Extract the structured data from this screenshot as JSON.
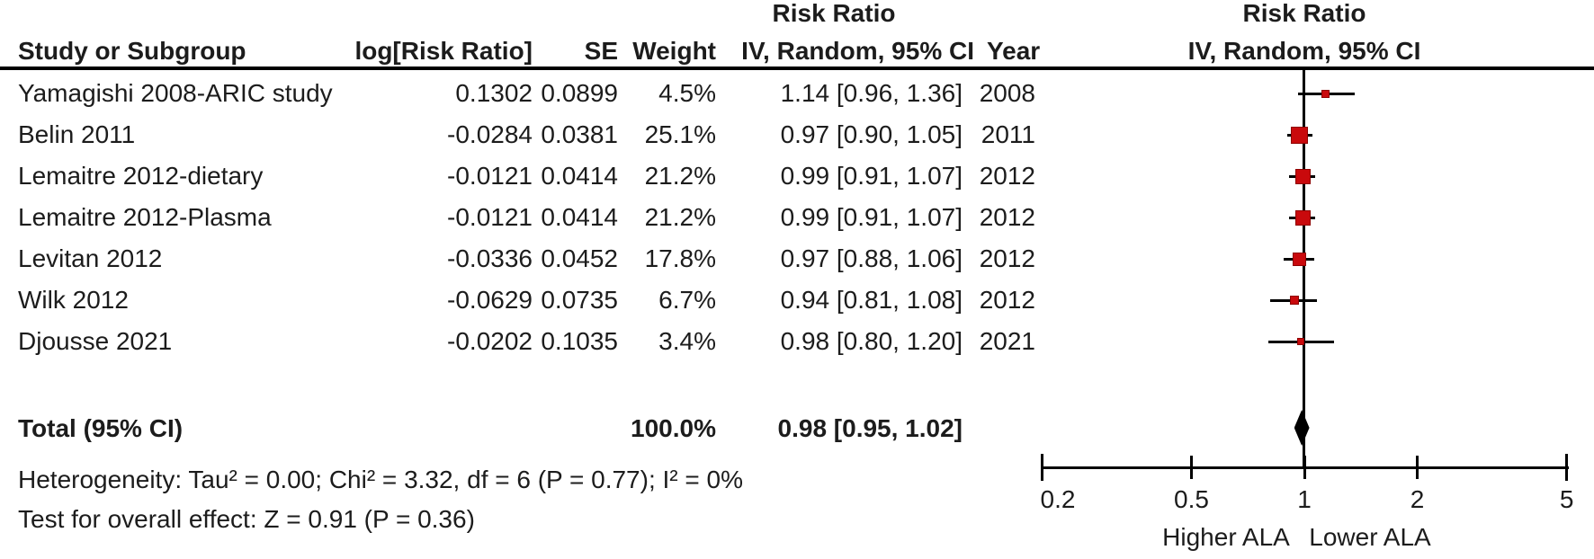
{
  "headers": {
    "left_group": "Risk Ratio",
    "right_group": "Risk Ratio",
    "right_subheader": "IV, Random, 95% CI",
    "columns": {
      "study": "Study or Subgroup",
      "log_rr": "log[Risk Ratio]",
      "se": "SE",
      "weight": "Weight",
      "ci": "IV, Random, 95% CI",
      "year": "Year"
    }
  },
  "colors": {
    "marker_fill": "#c9090c",
    "marker_border": "#8f0000",
    "diamond": "#000000",
    "line": "#000000"
  },
  "chart_data": {
    "type": "forest",
    "effect_measure": "Risk Ratio",
    "model": "IV, Random, 95% CI",
    "x_scale": "log",
    "x_ticks": [
      0.2,
      0.5,
      1,
      2,
      5
    ],
    "x_tick_labels": [
      "0.2",
      "0.5",
      "1",
      "2",
      "5"
    ],
    "axis_labels": {
      "left": "Higher ALA",
      "right": "Lower ALA"
    },
    "studies": [
      {
        "study": "Yamagishi 2008-ARIC study",
        "log_rr": "0.1302",
        "se": "0.0899",
        "weight": "4.5%",
        "estimate_label": "1.14 [0.96, 1.36]",
        "year": "2008",
        "rr": 1.14,
        "ci_low": 0.96,
        "ci_high": 1.36
      },
      {
        "study": "Belin 2011",
        "log_rr": "-0.0284",
        "se": "0.0381",
        "weight": "25.1%",
        "estimate_label": "0.97 [0.90, 1.05]",
        "year": "2011",
        "rr": 0.97,
        "ci_low": 0.9,
        "ci_high": 1.05
      },
      {
        "study": "Lemaitre 2012-dietary",
        "log_rr": "-0.0121",
        "se": "0.0414",
        "weight": "21.2%",
        "estimate_label": "0.99 [0.91, 1.07]",
        "year": "2012",
        "rr": 0.99,
        "ci_low": 0.91,
        "ci_high": 1.07
      },
      {
        "study": "Lemaitre 2012-Plasma",
        "log_rr": "-0.0121",
        "se": "0.0414",
        "weight": "21.2%",
        "estimate_label": "0.99 [0.91, 1.07]",
        "year": "2012",
        "rr": 0.99,
        "ci_low": 0.91,
        "ci_high": 1.07
      },
      {
        "study": "Levitan 2012",
        "log_rr": "-0.0336",
        "se": "0.0452",
        "weight": "17.8%",
        "estimate_label": "0.97 [0.88, 1.06]",
        "year": "2012",
        "rr": 0.97,
        "ci_low": 0.88,
        "ci_high": 1.06
      },
      {
        "study": "Wilk 2012",
        "log_rr": "-0.0629",
        "se": "0.0735",
        "weight": "6.7%",
        "estimate_label": "0.94 [0.81, 1.08]",
        "year": "2012",
        "rr": 0.94,
        "ci_low": 0.81,
        "ci_high": 1.08
      },
      {
        "study": "Djousse 2021",
        "log_rr": "-0.0202",
        "se": "0.1035",
        "weight": "3.4%",
        "estimate_label": "0.98 [0.80, 1.20]",
        "year": "2021",
        "rr": 0.98,
        "ci_low": 0.8,
        "ci_high": 1.2
      }
    ],
    "total": {
      "label": "Total (95% CI)",
      "weight_label": "100.0%",
      "estimate_label": "0.98 [0.95, 1.02]",
      "rr": 0.98,
      "ci_low": 0.95,
      "ci_high": 1.02
    },
    "heterogeneity": "Heterogeneity: Tau² = 0.00; Chi² = 3.32, df = 6 (P = 0.77); I² = 0%",
    "overall_effect_test": "Test for overall effect: Z = 0.91 (P = 0.36)"
  }
}
